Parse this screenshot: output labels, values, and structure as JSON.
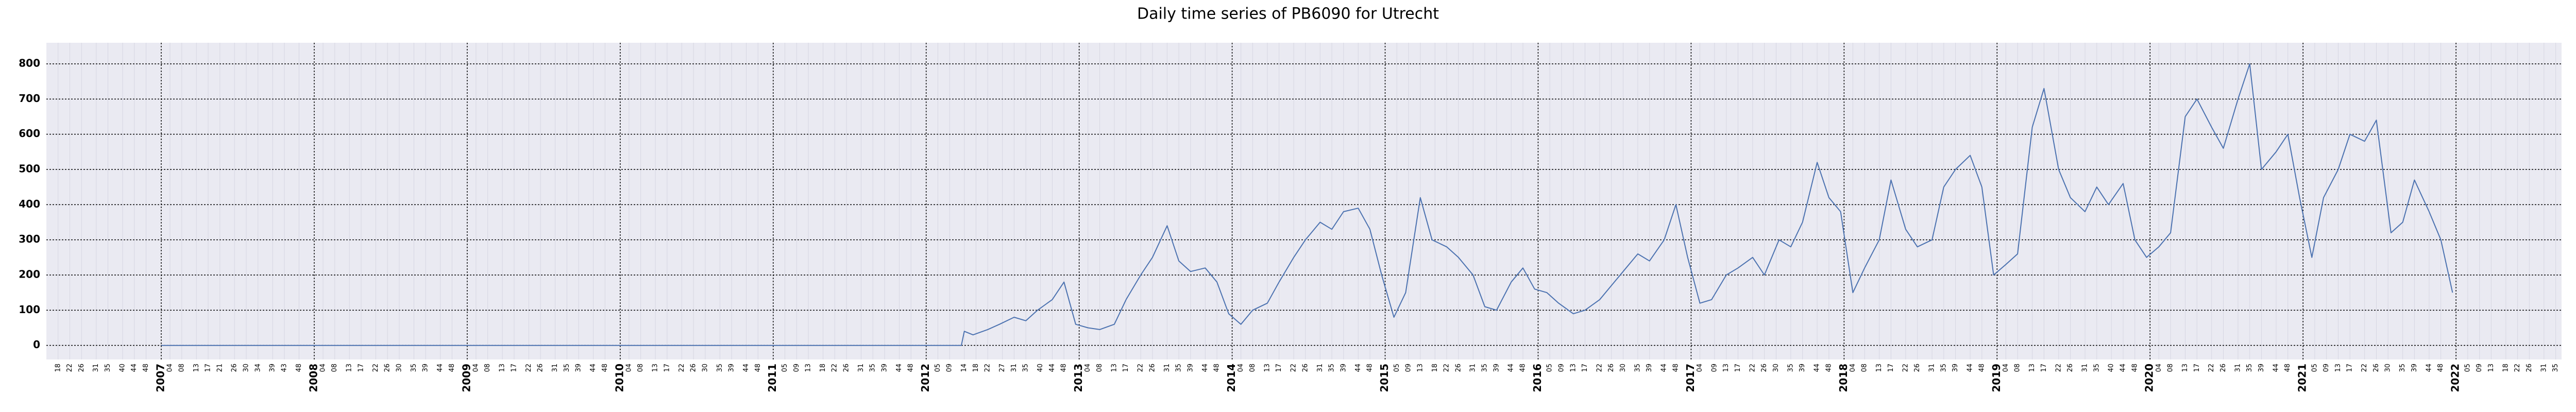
{
  "chart_data": {
    "type": "line",
    "title": "Daily time series of PB6090 for Utrecht",
    "series": [
      {
        "color": "#4c72b0",
        "x": [
          "2007-W01",
          "2012-W13",
          "2012-W14",
          "2012-W17",
          "2012-W22",
          "2012-W26",
          "2012-W31",
          "2012-W35",
          "2012-W39",
          "2012-W44",
          "2012-W48",
          "2012-W52",
          "2013-W04",
          "2013-W08",
          "2013-W13",
          "2013-W17",
          "2013-W22",
          "2013-W26",
          "2013-W31",
          "2013-W35",
          "2013-W39",
          "2013-W44",
          "2013-W48",
          "2013-W52",
          "2014-W04",
          "2014-W08",
          "2014-W13",
          "2014-W17",
          "2014-W22",
          "2014-W26",
          "2014-W31",
          "2014-W35",
          "2014-W39",
          "2014-W44",
          "2014-W48",
          "2014-W52",
          "2015-W04",
          "2015-W08",
          "2015-W13",
          "2015-W17",
          "2015-W22",
          "2015-W26",
          "2015-W31",
          "2015-W35",
          "2015-W39",
          "2015-W44",
          "2015-W48",
          "2015-W52",
          "2016-W04",
          "2016-W08",
          "2016-W13",
          "2016-W17",
          "2016-W22",
          "2016-W26",
          "2016-W31",
          "2016-W35",
          "2016-W39",
          "2016-W44",
          "2016-W48",
          "2016-W52",
          "2017-W04",
          "2017-W08",
          "2017-W13",
          "2017-W17",
          "2017-W22",
          "2017-W26",
          "2017-W31",
          "2017-W35",
          "2017-W39",
          "2017-W44",
          "2017-W48",
          "2017-W52",
          "2018-W04",
          "2018-W08",
          "2018-W13",
          "2018-W17",
          "2018-W22",
          "2018-W26",
          "2018-W31",
          "2018-W35",
          "2018-W39",
          "2018-W44",
          "2018-W48",
          "2018-W52",
          "2019-W04",
          "2019-W08",
          "2019-W13",
          "2019-W17",
          "2019-W22",
          "2019-W26",
          "2019-W31",
          "2019-W35",
          "2019-W39",
          "2019-W44",
          "2019-W48",
          "2019-W52",
          "2020-W04",
          "2020-W08",
          "2020-W13",
          "2020-W17",
          "2020-W22",
          "2020-W26",
          "2020-W31",
          "2020-W35",
          "2020-W39",
          "2020-W44",
          "2020-W48",
          "2020-W52",
          "2021-W04",
          "2021-W08",
          "2021-W13",
          "2021-W17",
          "2021-W22",
          "2021-W26",
          "2021-W31",
          "2021-W35",
          "2021-W39",
          "2021-W44",
          "2021-W48",
          "2021-W52"
        ],
        "values": [
          0,
          0,
          40,
          30,
          45,
          60,
          80,
          70,
          100,
          130,
          180,
          60,
          50,
          45,
          60,
          130,
          200,
          250,
          340,
          240,
          210,
          220,
          180,
          90,
          60,
          100,
          120,
          180,
          250,
          300,
          350,
          330,
          380,
          390,
          330,
          200,
          80,
          150,
          420,
          300,
          280,
          250,
          200,
          110,
          100,
          180,
          220,
          160,
          150,
          120,
          90,
          100,
          130,
          170,
          220,
          260,
          240,
          300,
          400,
          250,
          120,
          130,
          200,
          220,
          250,
          200,
          300,
          280,
          350,
          520,
          420,
          380,
          150,
          220,
          300,
          470,
          330,
          280,
          300,
          450,
          500,
          540,
          450,
          200,
          230,
          260,
          620,
          730,
          500,
          420,
          380,
          450,
          400,
          460,
          300,
          250,
          280,
          320,
          650,
          700,
          620,
          560,
          700,
          800,
          500,
          550,
          600,
          420,
          250,
          420,
          500,
          600,
          580,
          640,
          320,
          350,
          470,
          380,
          300,
          150
        ]
      }
    ],
    "xlim": [
      "2006-W14",
      "2022-W37"
    ],
    "xticks": [
      2007,
      2008,
      2009,
      2010,
      2011,
      2012,
      2013,
      2014,
      2015,
      2016,
      2017,
      2018,
      2019,
      2020,
      2021,
      2022
    ],
    "week_ticks": [
      {
        "year": 2006,
        "weeks": [
          "18",
          "22",
          "26",
          "31",
          "35",
          "40",
          "44",
          "48"
        ]
      },
      {
        "year": 2007,
        "weeks": [
          "04",
          "08",
          "13",
          "17",
          "21",
          "26",
          "30",
          "34",
          "39",
          "43",
          "48"
        ]
      },
      {
        "year": 2008,
        "weeks": [
          "04",
          "08",
          "13",
          "17",
          "22",
          "26",
          "30",
          "35",
          "39",
          "44",
          "48"
        ]
      },
      {
        "year": 2009,
        "weeks": [
          "04",
          "08",
          "13",
          "17",
          "22",
          "26",
          "31",
          "35",
          "39",
          "44",
          "48"
        ]
      },
      {
        "year": 2010,
        "weeks": [
          "04",
          "08",
          "13",
          "17",
          "22",
          "26",
          "30",
          "35",
          "39",
          "44",
          "48"
        ]
      },
      {
        "year": 2011,
        "weeks": [
          "05",
          "09",
          "13",
          "18",
          "22",
          "26",
          "31",
          "35",
          "39",
          "44",
          "48"
        ]
      },
      {
        "year": 2012,
        "weeks": [
          "05",
          "09",
          "14",
          "18",
          "22",
          "27",
          "31",
          "35",
          "40",
          "44",
          "48"
        ]
      },
      {
        "year": 2013,
        "weeks": [
          "04",
          "08",
          "13",
          "17",
          "22",
          "26",
          "31",
          "35",
          "39",
          "44",
          "48"
        ]
      },
      {
        "year": 2014,
        "weeks": [
          "04",
          "08",
          "13",
          "17",
          "22",
          "26",
          "31",
          "35",
          "39",
          "44",
          "48"
        ]
      },
      {
        "year": 2015,
        "weeks": [
          "05",
          "09",
          "13",
          "18",
          "22",
          "26",
          "31",
          "35",
          "39",
          "44",
          "48"
        ]
      },
      {
        "year": 2016,
        "weeks": [
          "05",
          "09",
          "13",
          "17",
          "22",
          "26",
          "30",
          "35",
          "39",
          "44",
          "48"
        ]
      },
      {
        "year": 2017,
        "weeks": [
          "04",
          "09",
          "13",
          "17",
          "22",
          "26",
          "30",
          "35",
          "39",
          "44",
          "48"
        ]
      },
      {
        "year": 2018,
        "weeks": [
          "04",
          "08",
          "13",
          "17",
          "22",
          "26",
          "31",
          "35",
          "39",
          "44",
          "48"
        ]
      },
      {
        "year": 2019,
        "weeks": [
          "04",
          "08",
          "13",
          "17",
          "22",
          "26",
          "31",
          "35",
          "40",
          "44",
          "48"
        ]
      },
      {
        "year": 2020,
        "weeks": [
          "04",
          "08",
          "13",
          "17",
          "22",
          "26",
          "31",
          "35",
          "39",
          "44",
          "48"
        ]
      },
      {
        "year": 2021,
        "weeks": [
          "05",
          "09",
          "13",
          "17",
          "22",
          "26",
          "30",
          "35",
          "39",
          "44",
          "48"
        ]
      },
      {
        "year": 2022,
        "weeks": [
          "05",
          "09",
          "13",
          "18",
          "22",
          "26",
          "31",
          "35"
        ]
      }
    ],
    "ylim": [
      -40,
      860
    ],
    "yticks": [
      0,
      100,
      200,
      300,
      400,
      500,
      600,
      700,
      800
    ],
    "grid": true
  }
}
